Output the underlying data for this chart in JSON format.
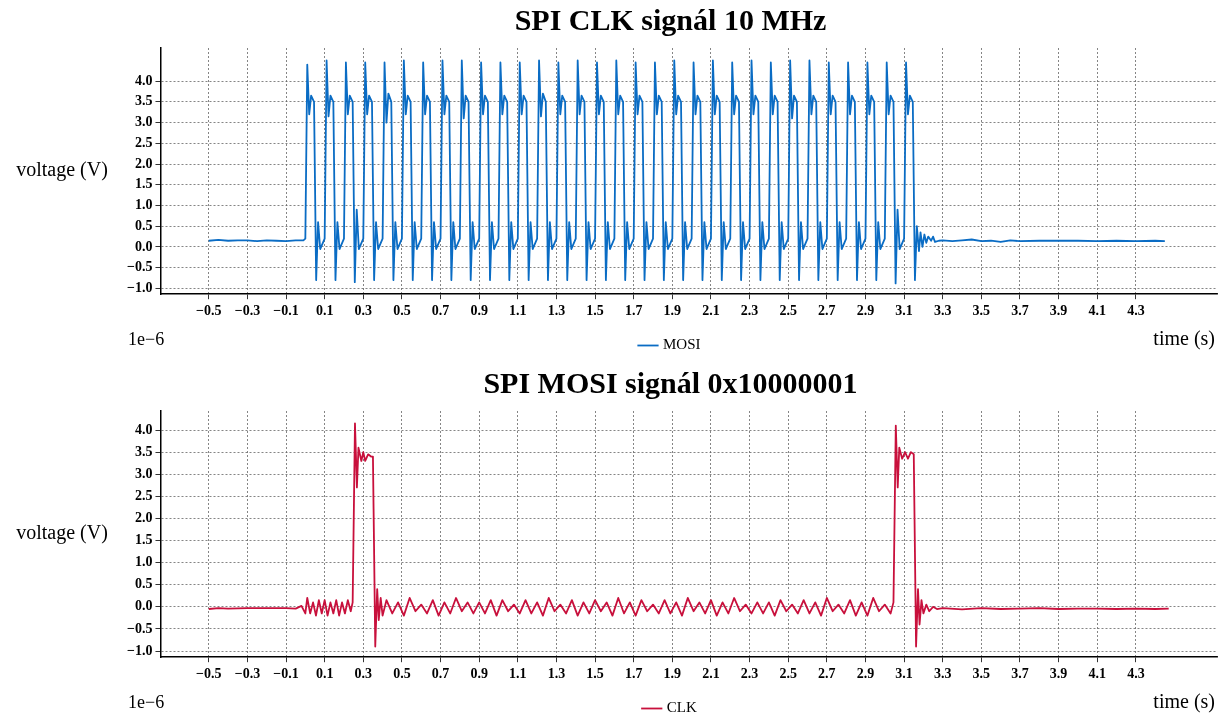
{
  "chart_data": [
    {
      "type": "line",
      "title": "SPI CLK signál 10 MHz",
      "xlabel": "time (s)",
      "ylabel": "voltage (V)",
      "annotations": [
        "1e−6"
      ],
      "grid": true,
      "legend": "bottom",
      "xlim": [
        -0.75,
        4.72
      ],
      "ylim": [
        -1.14,
        4.8
      ],
      "xticks": [
        {
          "value": -0.5,
          "label": "−0.5"
        },
        {
          "value": -0.3,
          "label": "−0.3"
        },
        {
          "value": -0.1,
          "label": "−0.1"
        },
        0.1,
        0.3,
        0.5,
        0.7,
        0.9,
        1.1,
        1.3,
        1.5,
        1.7,
        1.9,
        2.1,
        2.3,
        2.5,
        2.7,
        2.9,
        3.1,
        3.3,
        3.5,
        3.7,
        3.9,
        4.1,
        4.3
      ],
      "yticks": [
        {
          "value": -1,
          "label": "−1.0"
        },
        {
          "value": -0.5,
          "label": "−0.5"
        },
        {
          "value": 0,
          "label": "0.0"
        },
        {
          "value": 0.5,
          "label": "0.5"
        },
        {
          "value": 1,
          "label": "1.0"
        },
        {
          "value": 1.5,
          "label": "1.5"
        },
        {
          "value": 2,
          "label": "2.0"
        },
        {
          "value": 2.5,
          "label": "2.5"
        },
        {
          "value": 3,
          "label": "3.0"
        },
        {
          "value": 3.5,
          "label": "3.5"
        },
        {
          "value": 4,
          "label": "4.0"
        }
      ],
      "series": [
        {
          "name": "MOSI",
          "color": "#0a6cc4",
          "x": [
            -0.5,
            -0.45,
            -0.4,
            -0.35,
            -0.3,
            -0.25,
            -0.2,
            -0.15,
            -0.1,
            -0.05,
            -0.01,
            0,
            0.01,
            0.02,
            0.03,
            0.045,
            0.056,
            0.066,
            0.077,
            0.1,
            0.11,
            0.12,
            0.13,
            0.145,
            0.156,
            0.166,
            0.177,
            0.2,
            0.21,
            0.22,
            0.23,
            0.245,
            0.256,
            0.266,
            0.277,
            0.3,
            0.31,
            0.32,
            0.33,
            0.345,
            0.356,
            0.366,
            0.377,
            0.4,
            0.41,
            0.42,
            0.43,
            0.445,
            0.456,
            0.466,
            0.477,
            0.5,
            0.51,
            0.52,
            0.53,
            0.545,
            0.556,
            0.566,
            0.577,
            0.6,
            0.61,
            0.62,
            0.63,
            0.645,
            0.656,
            0.666,
            0.677,
            0.7,
            0.71,
            0.72,
            0.73,
            0.745,
            0.756,
            0.766,
            0.777,
            0.8,
            0.81,
            0.82,
            0.83,
            0.845,
            0.856,
            0.866,
            0.877,
            0.9,
            0.91,
            0.92,
            0.93,
            0.945,
            0.956,
            0.966,
            0.977,
            1,
            1.01,
            1.02,
            1.03,
            1.045,
            1.056,
            1.066,
            1.077,
            1.1,
            1.11,
            1.12,
            1.13,
            1.145,
            1.156,
            1.166,
            1.177,
            1.2,
            1.21,
            1.22,
            1.23,
            1.245,
            1.256,
            1.266,
            1.277,
            1.3,
            1.31,
            1.32,
            1.33,
            1.345,
            1.356,
            1.366,
            1.377,
            1.4,
            1.41,
            1.42,
            1.43,
            1.445,
            1.456,
            1.466,
            1.477,
            1.5,
            1.51,
            1.52,
            1.53,
            1.545,
            1.556,
            1.566,
            1.577,
            1.6,
            1.61,
            1.62,
            1.63,
            1.645,
            1.656,
            1.666,
            1.677,
            1.7,
            1.71,
            1.72,
            1.73,
            1.745,
            1.756,
            1.766,
            1.777,
            1.8,
            1.81,
            1.82,
            1.83,
            1.845,
            1.856,
            1.866,
            1.877,
            1.9,
            1.91,
            1.92,
            1.93,
            1.945,
            1.956,
            1.966,
            1.977,
            2,
            2.01,
            2.02,
            2.03,
            2.045,
            2.056,
            2.066,
            2.077,
            2.1,
            2.11,
            2.12,
            2.13,
            2.145,
            2.156,
            2.166,
            2.177,
            2.2,
            2.21,
            2.22,
            2.23,
            2.245,
            2.256,
            2.266,
            2.277,
            2.3,
            2.31,
            2.32,
            2.33,
            2.345,
            2.356,
            2.366,
            2.377,
            2.4,
            2.41,
            2.42,
            2.43,
            2.445,
            2.456,
            2.466,
            2.477,
            2.5,
            2.51,
            2.52,
            2.53,
            2.545,
            2.556,
            2.566,
            2.577,
            2.6,
            2.61,
            2.62,
            2.63,
            2.645,
            2.656,
            2.666,
            2.677,
            2.7,
            2.71,
            2.72,
            2.73,
            2.745,
            2.756,
            2.766,
            2.777,
            2.8,
            2.81,
            2.82,
            2.83,
            2.845,
            2.856,
            2.866,
            2.877,
            2.9,
            2.91,
            2.92,
            2.93,
            2.945,
            2.956,
            2.966,
            2.977,
            3,
            3.01,
            3.02,
            3.03,
            3.045,
            3.056,
            3.066,
            3.077,
            3.1,
            3.11,
            3.12,
            3.13,
            3.145,
            3.156,
            3.166,
            3.177,
            3.185,
            3.195,
            3.205,
            3.215,
            3.225,
            3.24,
            3.25,
            3.26,
            3.28,
            3.3,
            3.35,
            3.4,
            3.45,
            3.5,
            3.55,
            3.6,
            3.65,
            3.7,
            3.8,
            3.9,
            4,
            4.1,
            4.2,
            4.3,
            4.4,
            4.45
          ],
          "values": [
            0.15,
            0.17,
            0.15,
            0.16,
            0.16,
            0.14,
            0.16,
            0.15,
            0.14,
            0.16,
            0.16,
            0.2,
            4.4,
            3.2,
            3.65,
            3.5,
            -0.8,
            0.6,
            -0.05,
            0.2,
            4.5,
            3.15,
            3.65,
            3.5,
            -0.8,
            0.6,
            -0.05,
            0.2,
            4.45,
            3.2,
            3.65,
            3.5,
            -0.85,
            0.9,
            -0.05,
            0.2,
            4.45,
            3.2,
            3.65,
            3.5,
            -0.8,
            0.6,
            -0.05,
            0.2,
            4.45,
            3.0,
            3.7,
            3.5,
            -0.8,
            0.6,
            -0.05,
            0.2,
            4.5,
            3.2,
            3.65,
            3.5,
            -0.8,
            0.6,
            -0.05,
            0.2,
            4.45,
            3.2,
            3.65,
            3.5,
            -0.8,
            0.6,
            -0.05,
            0.2,
            4.5,
            3.2,
            3.65,
            3.5,
            -0.8,
            0.6,
            -0.05,
            0.2,
            4.5,
            3.1,
            3.65,
            3.5,
            -0.8,
            0.6,
            -0.05,
            0.2,
            4.45,
            3.2,
            3.65,
            3.5,
            -0.8,
            0.6,
            -0.05,
            0.2,
            4.45,
            3.2,
            3.65,
            3.5,
            -0.8,
            0.6,
            -0.05,
            0.2,
            4.45,
            3.2,
            3.65,
            3.5,
            -0.8,
            0.6,
            -0.05,
            0.2,
            4.5,
            3.15,
            3.7,
            3.5,
            -0.8,
            0.6,
            -0.05,
            0.2,
            4.45,
            3.2,
            3.65,
            3.5,
            -0.8,
            0.6,
            -0.05,
            0.2,
            4.5,
            3.2,
            3.65,
            3.5,
            -0.8,
            0.6,
            -0.05,
            0.2,
            4.45,
            3.2,
            3.65,
            3.5,
            -0.8,
            0.6,
            -0.05,
            0.2,
            4.5,
            3.2,
            3.65,
            3.5,
            -0.8,
            0.6,
            -0.05,
            0.2,
            4.45,
            3.2,
            3.65,
            3.5,
            -0.8,
            0.6,
            -0.05,
            0.2,
            4.45,
            3.2,
            3.65,
            3.5,
            -0.8,
            0.6,
            -0.05,
            0.2,
            4.5,
            3.2,
            3.65,
            3.5,
            -0.8,
            0.6,
            -0.05,
            0.2,
            4.45,
            3.2,
            3.65,
            3.5,
            -0.8,
            0.6,
            -0.05,
            0.2,
            4.5,
            3.2,
            3.65,
            3.5,
            -0.8,
            0.6,
            -0.05,
            0.2,
            4.45,
            3.2,
            3.65,
            3.5,
            -0.8,
            0.6,
            -0.05,
            0.2,
            4.5,
            3.2,
            3.65,
            3.5,
            -0.8,
            0.6,
            -0.05,
            0.2,
            4.45,
            3.2,
            3.65,
            3.5,
            -0.8,
            0.6,
            -0.05,
            0.2,
            4.5,
            3.1,
            3.65,
            3.5,
            -0.8,
            0.6,
            -0.05,
            0.2,
            4.5,
            3.2,
            3.65,
            3.5,
            -0.8,
            0.6,
            -0.05,
            0.2,
            4.45,
            3.2,
            3.65,
            3.5,
            -0.8,
            0.6,
            -0.05,
            0.2,
            4.45,
            3.2,
            3.65,
            3.5,
            -0.8,
            0.6,
            -0.05,
            0.2,
            4.45,
            3.2,
            3.65,
            3.5,
            -0.8,
            0.6,
            -0.05,
            0.2,
            4.45,
            3.2,
            3.65,
            3.5,
            -0.88,
            0.9,
            -0.05,
            0.2,
            4.45,
            3.2,
            3.65,
            3.5,
            -0.8,
            0.5,
            -0.1,
            0.35,
            0,
            0.3,
            0.1,
            0.25,
            0.15,
            0.25,
            0.12,
            0.15,
            0.16,
            0.14,
            0.16,
            0.18,
            0.14,
            0.15,
            0.12,
            0.16,
            0.14,
            0.15,
            0.15,
            0.15,
            0.14,
            0.15,
            0.14,
            0.15,
            0.14
          ]
        }
      ]
    },
    {
      "type": "line",
      "title": "SPI MOSI signál 0x10000001",
      "xlabel": "time (s)",
      "ylabel": "voltage (V)",
      "annotations": [
        "1e−6"
      ],
      "grid": true,
      "legend": "bottom",
      "xlim": [
        -0.75,
        4.72
      ],
      "ylim": [
        -1.14,
        4.43
      ],
      "xticks": [
        {
          "value": -0.5,
          "label": "−0.5"
        },
        {
          "value": -0.3,
          "label": "−0.3"
        },
        {
          "value": -0.1,
          "label": "−0.1"
        },
        0.1,
        0.3,
        0.5,
        0.7,
        0.9,
        1.1,
        1.3,
        1.5,
        1.7,
        1.9,
        2.1,
        2.3,
        2.5,
        2.7,
        2.9,
        3.1,
        3.3,
        3.5,
        3.7,
        3.9,
        4.1,
        4.3
      ],
      "yticks": [
        {
          "value": -1,
          "label": "−1.0"
        },
        {
          "value": -0.5,
          "label": "−0.5"
        },
        {
          "value": 0,
          "label": "0.0"
        },
        {
          "value": 0.5,
          "label": "0.5"
        },
        {
          "value": 1,
          "label": "1.0"
        },
        {
          "value": 1.5,
          "label": "1.5"
        },
        {
          "value": 2,
          "label": "2.0"
        },
        {
          "value": 2.5,
          "label": "2.5"
        },
        {
          "value": 3,
          "label": "3.0"
        },
        {
          "value": 3.5,
          "label": "3.5"
        },
        {
          "value": 4,
          "label": "4.0"
        }
      ],
      "series": [
        {
          "name": "CLK",
          "color": "#c8103c",
          "x": [
            -0.5,
            -0.45,
            -0.4,
            -0.3,
            -0.2,
            -0.1,
            -0.05,
            -0.02,
            0,
            0.01,
            0.025,
            0.04,
            0.055,
            0.07,
            0.085,
            0.1,
            0.115,
            0.13,
            0.145,
            0.16,
            0.175,
            0.19,
            0.205,
            0.22,
            0.235,
            0.245,
            0.257,
            0.267,
            0.275,
            0.29,
            0.3,
            0.31,
            0.325,
            0.34,
            0.35,
            0.362,
            0.372,
            0.38,
            0.39,
            0.4,
            0.42,
            0.45,
            0.48,
            0.51,
            0.54,
            0.57,
            0.6,
            0.63,
            0.66,
            0.69,
            0.72,
            0.75,
            0.78,
            0.81,
            0.84,
            0.87,
            0.9,
            0.93,
            0.96,
            0.99,
            1.02,
            1.05,
            1.08,
            1.11,
            1.14,
            1.17,
            1.2,
            1.23,
            1.26,
            1.29,
            1.32,
            1.35,
            1.38,
            1.41,
            1.44,
            1.47,
            1.5,
            1.53,
            1.56,
            1.59,
            1.62,
            1.65,
            1.68,
            1.71,
            1.74,
            1.77,
            1.8,
            1.83,
            1.86,
            1.89,
            1.92,
            1.95,
            1.98,
            2.01,
            2.04,
            2.07,
            2.1,
            2.13,
            2.16,
            2.19,
            2.22,
            2.25,
            2.28,
            2.31,
            2.34,
            2.37,
            2.4,
            2.43,
            2.46,
            2.49,
            2.52,
            2.55,
            2.58,
            2.61,
            2.64,
            2.67,
            2.7,
            2.73,
            2.76,
            2.79,
            2.82,
            2.85,
            2.88,
            2.91,
            2.94,
            2.97,
            3,
            3.03,
            3.045,
            3.057,
            3.067,
            3.075,
            3.09,
            3.105,
            3.12,
            3.135,
            3.15,
            3.162,
            3.172,
            3.18,
            3.19,
            3.2,
            3.215,
            3.23,
            3.25,
            3.27,
            3.3,
            3.4,
            3.5,
            3.6,
            3.7,
            3.8,
            3.9,
            4,
            4.1,
            4.2,
            4.3,
            4.4,
            4.47
          ],
          "values": [
            -0.05,
            -0.03,
            -0.04,
            -0.03,
            -0.03,
            -0.03,
            -0.04,
            0.02,
            -0.15,
            0.2,
            -0.15,
            0.1,
            -0.2,
            0.15,
            -0.15,
            0.15,
            -0.2,
            0.1,
            -0.15,
            0.15,
            -0.2,
            0.1,
            -0.15,
            0.15,
            -0.1,
            0.1,
            4.15,
            2.7,
            3.6,
            3.3,
            3.5,
            3.3,
            3.45,
            3.4,
            3.4,
            -0.9,
            0.4,
            -0.3,
            0.2,
            -0.2,
            0.15,
            -0.15,
            0.1,
            -0.2,
            0.2,
            -0.1,
            0.05,
            -0.15,
            0.15,
            -0.2,
            0.1,
            -0.15,
            0.2,
            -0.1,
            0.1,
            -0.15,
            0.1,
            -0.15,
            0.15,
            -0.2,
            0.15,
            -0.1,
            0.05,
            -0.15,
            0.15,
            -0.15,
            0.1,
            -0.2,
            0.2,
            -0.1,
            0.05,
            -0.15,
            0.15,
            -0.2,
            0.1,
            -0.15,
            0.15,
            -0.1,
            0.1,
            -0.2,
            0.2,
            -0.15,
            0.1,
            -0.2,
            0.15,
            -0.1,
            0.05,
            -0.15,
            0.15,
            -0.15,
            0.1,
            -0.2,
            0.2,
            -0.1,
            0.1,
            -0.15,
            0.15,
            -0.2,
            0.1,
            -0.15,
            0.2,
            -0.1,
            0.05,
            -0.15,
            0.1,
            -0.15,
            0.1,
            -0.2,
            0.15,
            -0.1,
            0.05,
            -0.15,
            0.15,
            -0.15,
            0.1,
            -0.2,
            0.2,
            -0.1,
            0.05,
            -0.15,
            0.15,
            -0.2,
            0.1,
            -0.2,
            0.2,
            -0.1,
            0.05,
            -0.15,
            0.1,
            4.1,
            2.7,
            3.6,
            3.35,
            3.5,
            3.35,
            3.5,
            3.45,
            -0.9,
            0.4,
            -0.4,
            0.15,
            -0.15,
            0.05,
            -0.1,
            0,
            -0.05,
            -0.03,
            -0.06,
            -0.03,
            -0.05,
            -0.04,
            -0.03,
            -0.05,
            -0.04,
            -0.04,
            -0.05,
            -0.04,
            -0.05,
            -0.04
          ]
        }
      ]
    }
  ]
}
